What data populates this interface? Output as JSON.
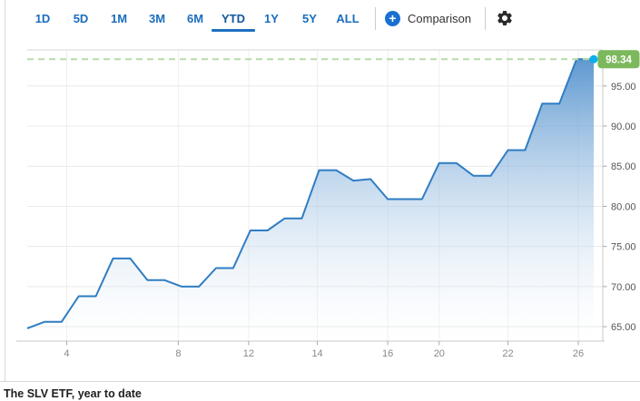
{
  "toolbar": {
    "ranges": [
      {
        "label": "1D",
        "active": false
      },
      {
        "label": "5D",
        "active": false
      },
      {
        "label": "1M",
        "active": false
      },
      {
        "label": "3M",
        "active": false
      },
      {
        "label": "6M",
        "active": false
      },
      {
        "label": "YTD",
        "active": true
      },
      {
        "label": "1Y",
        "active": false
      },
      {
        "label": "5Y",
        "active": false
      },
      {
        "label": "ALL",
        "active": false
      }
    ],
    "comparison_label": "Comparison",
    "plus_icon": "+",
    "accent_color": "#1a70d1"
  },
  "chart_data": {
    "type": "area",
    "title": "The SLV ETF, year to date",
    "current_value": 98.34,
    "current_value_label": "98.34",
    "ylim": [
      63.2,
      99.5
    ],
    "grid": true,
    "legend_position": "none",
    "yticks": [
      {
        "v": 65,
        "label": "65.00"
      },
      {
        "v": 70,
        "label": "70.00"
      },
      {
        "v": 75,
        "label": "75.00"
      },
      {
        "v": 80,
        "label": "80.00"
      },
      {
        "v": 85,
        "label": "85.00"
      },
      {
        "v": 90,
        "label": "90.00"
      },
      {
        "v": 95,
        "label": "95.00"
      }
    ],
    "xticks": [
      {
        "pos": 2.3,
        "label": "4"
      },
      {
        "pos": 8.8,
        "label": "8"
      },
      {
        "pos": 12.9,
        "label": "12"
      },
      {
        "pos": 16.9,
        "label": "14"
      },
      {
        "pos": 21.0,
        "label": "16"
      },
      {
        "pos": 24.0,
        "label": "20"
      },
      {
        "pos": 28.0,
        "label": "22"
      },
      {
        "pos": 32.1,
        "label": "26"
      }
    ],
    "values": [
      64.8,
      65.6,
      65.6,
      68.8,
      68.8,
      73.5,
      73.5,
      70.8,
      70.8,
      70.0,
      70.0,
      72.3,
      72.3,
      77.0,
      77.0,
      78.5,
      78.5,
      84.5,
      84.5,
      83.2,
      83.4,
      80.9,
      80.9,
      80.9,
      85.4,
      85.4,
      83.8,
      83.8,
      87.0,
      87.0,
      92.8,
      92.8,
      98.34,
      98.34
    ],
    "colors": {
      "line": "#2f7dc2",
      "area_top": "#4186c8",
      "area_bottom": "#ffffff",
      "dot": "#0baeea",
      "badge_bg": "#7cb85c",
      "badge_text": "#ffffff",
      "dashed_line": "#b7dba9",
      "grid": "#e9e9e9",
      "axis": "#c8c8c8",
      "tick": "#aaaaaa",
      "ylabel": "#555555",
      "xlabel": "#888888"
    }
  },
  "caption": {
    "text": "The SLV ETF, year to date"
  }
}
